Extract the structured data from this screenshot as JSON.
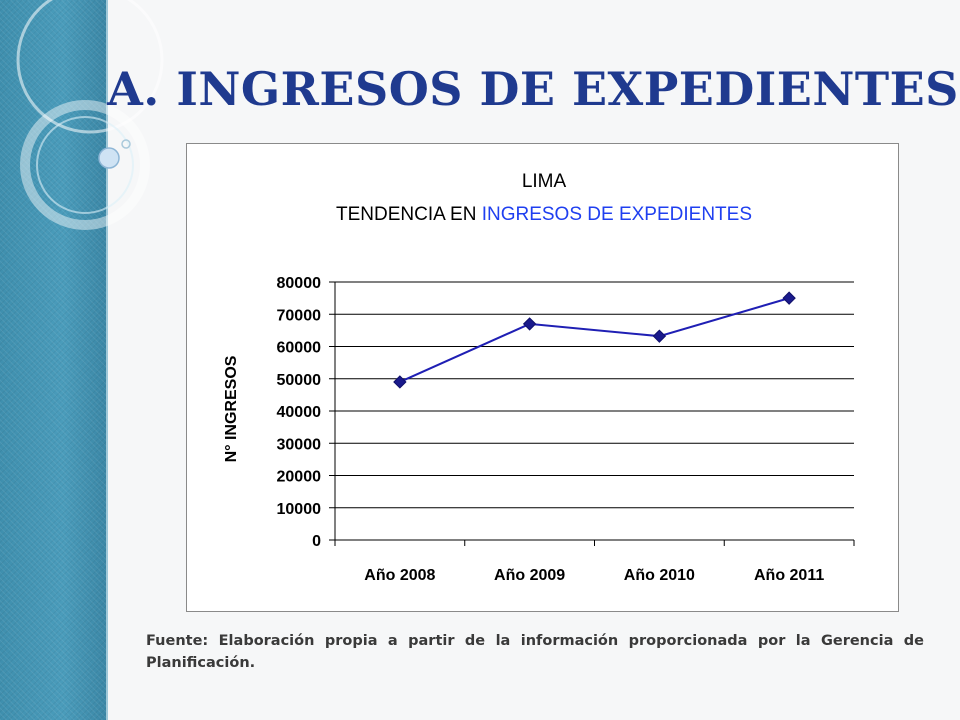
{
  "slide": {
    "title": "A. INGRESOS DE EXPEDIENTES",
    "source_note": "Fuente: Elaboración propia a partir de la información proporcionada por la Gerencia de Planificación."
  },
  "colors": {
    "title": "#1f3a8f",
    "series": "#1f1fb4",
    "title_highlight": "#1f3ff0",
    "side_band": "#4a9cbb"
  },
  "chart_data": {
    "type": "line",
    "title": "LIMA",
    "subtitle_prefix": "TENDENCIA EN ",
    "subtitle_highlight": "INGRESOS DE EXPEDIENTES",
    "ylabel": "N° INGRESOS",
    "xlabel": "",
    "categories": [
      "Año 2008",
      "Año 2009",
      "Año 2010",
      "Año 2011"
    ],
    "series": [
      {
        "values": [
          49000,
          67000,
          63200,
          75000
        ]
      }
    ],
    "ylim": [
      0,
      80000
    ],
    "yticks": [
      0,
      10000,
      20000,
      30000,
      40000,
      50000,
      60000,
      70000,
      80000
    ],
    "grid": true,
    "legend": "none",
    "marker": "diamond"
  }
}
